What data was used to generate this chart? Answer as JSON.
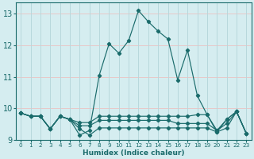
{
  "xlabel": "Humidex (Indice chaleur)",
  "bg_color": "#d5edf0",
  "line_color": "#1a6b6b",
  "grid_color_teal": "#b8d8dc",
  "grid_color_pink": "#e8c8c8",
  "xlim": [
    -0.5,
    23.5
  ],
  "ylim": [
    9.0,
    13.35
  ],
  "yticks": [
    9,
    10,
    11,
    12,
    13
  ],
  "xticks": [
    0,
    1,
    2,
    3,
    4,
    5,
    6,
    7,
    8,
    9,
    10,
    11,
    12,
    13,
    14,
    15,
    16,
    17,
    18,
    19,
    20,
    21,
    22,
    23
  ],
  "series": [
    {
      "x": [
        0,
        1,
        2,
        3,
        4,
        5,
        6,
        7,
        8,
        9,
        10,
        11,
        12,
        13,
        14,
        15,
        16,
        17,
        18,
        19,
        20,
        21,
        22,
        23
      ],
      "y": [
        9.85,
        9.75,
        9.75,
        9.35,
        9.75,
        9.65,
        9.15,
        9.3,
        11.05,
        12.05,
        11.75,
        12.15,
        13.1,
        12.75,
        12.45,
        12.2,
        10.9,
        11.85,
        10.4,
        9.8,
        9.25,
        9.65,
        9.9,
        9.2
      ]
    },
    {
      "x": [
        0,
        1,
        2,
        3,
        4,
        5,
        6,
        7,
        8,
        9,
        10,
        11,
        12,
        13,
        14,
        15,
        16,
        17,
        18,
        19,
        20,
        21,
        22,
        23
      ],
      "y": [
        9.85,
        9.75,
        9.75,
        9.35,
        9.75,
        9.65,
        9.55,
        9.55,
        9.75,
        9.75,
        9.75,
        9.75,
        9.75,
        9.75,
        9.75,
        9.75,
        9.75,
        9.75,
        9.8,
        9.8,
        9.3,
        9.65,
        9.9,
        9.2
      ]
    },
    {
      "x": [
        0,
        1,
        2,
        3,
        4,
        5,
        6,
        7,
        8,
        9,
        10,
        11,
        12,
        13,
        14,
        15,
        16,
        17,
        18,
        19,
        20,
        21,
        22,
        23
      ],
      "y": [
        9.85,
        9.75,
        9.75,
        9.35,
        9.75,
        9.65,
        9.45,
        9.45,
        9.62,
        9.62,
        9.62,
        9.62,
        9.62,
        9.62,
        9.62,
        9.62,
        9.52,
        9.52,
        9.52,
        9.52,
        9.3,
        9.52,
        9.9,
        9.2
      ]
    },
    {
      "x": [
        0,
        1,
        2,
        3,
        4,
        5,
        6,
        7,
        8,
        9,
        10,
        11,
        12,
        13,
        14,
        15,
        16,
        17,
        18,
        19,
        20,
        21,
        22,
        23
      ],
      "y": [
        9.85,
        9.75,
        9.75,
        9.35,
        9.75,
        9.65,
        9.35,
        9.15,
        9.38,
        9.38,
        9.38,
        9.38,
        9.38,
        9.38,
        9.38,
        9.38,
        9.38,
        9.38,
        9.38,
        9.38,
        9.25,
        9.38,
        9.9,
        9.2
      ]
    }
  ]
}
